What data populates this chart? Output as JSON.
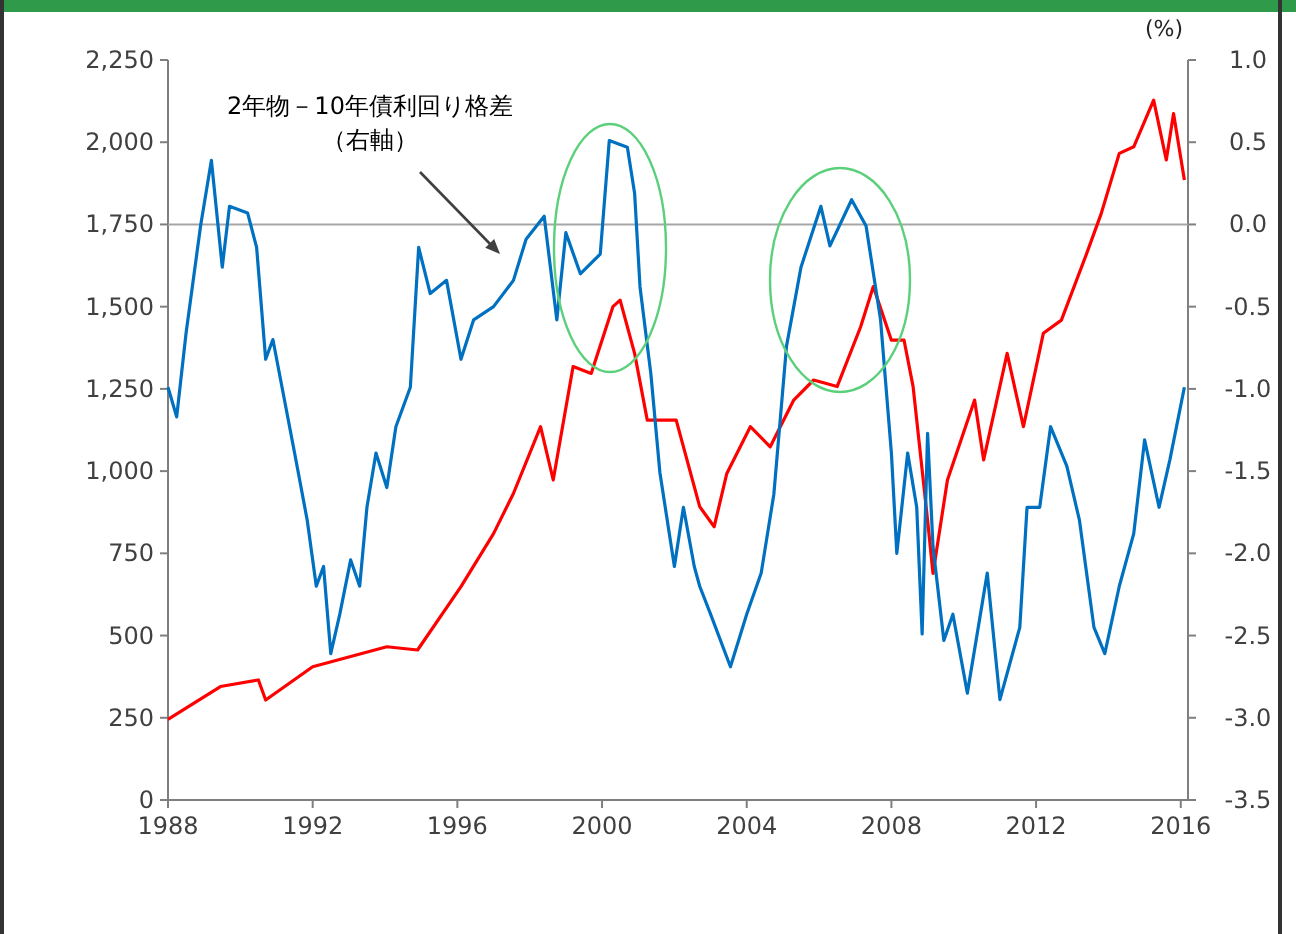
{
  "chart_data": {
    "type": "line",
    "y2label": "(%)",
    "xlim": [
      1988,
      2016.2
    ],
    "xticks": [
      1988,
      1992,
      1996,
      2000,
      2004,
      2008,
      2012,
      2016
    ],
    "ylim": [
      0,
      2250
    ],
    "yticks": [
      0,
      250,
      500,
      {
        "value": 750,
        "label": "750"
      },
      {
        "value": 1000,
        "label": "1,000"
      },
      {
        "value": 1250,
        "label": "1,250"
      },
      {
        "value": 1500,
        "label": "1,500"
      },
      {
        "value": 1750,
        "label": "1,750"
      },
      {
        "value": 2000,
        "label": "2,000"
      },
      {
        "value": 2250,
        "label": "2,250"
      }
    ],
    "y2lim": [
      -3.5,
      1.0
    ],
    "y2ticks": [
      {
        "value": -3.5,
        "label": "-3.5"
      },
      {
        "value": -3,
        "label": "-3.0"
      },
      {
        "value": -2.5,
        "label": "-2.5"
      },
      {
        "value": -2,
        "label": "-2.0"
      },
      {
        "value": -1.5,
        "label": "-1.5"
      },
      {
        "value": -1,
        "label": "-1.0"
      },
      {
        "value": -0.5,
        "label": "-0.5"
      },
      {
        "value": 0,
        "label": "0.0"
      },
      {
        "value": 0.5,
        "label": "0.5"
      },
      {
        "value": 1,
        "label": "1.0"
      }
    ],
    "ref_lines": [
      {
        "axis": "y2",
        "value": 0,
        "color": "#a6a6a6"
      }
    ],
    "annotations": [
      "2年物－10年債利回り格差",
      "（右軸）"
    ],
    "series": [
      {
        "color": "#ff0000",
        "axis": "y",
        "x": [
          1988.0,
          1989.45,
          1990.5,
          1990.7,
          1992.0,
          1994.05,
          1994.9,
          1996.1,
          1997.0,
          1997.55,
          1998.3,
          1998.65,
          1999.2,
          1999.7,
          2000.3,
          2000.5,
          2000.9,
          2001.25,
          2001.6,
          2002.05,
          2002.45,
          2002.7,
          2003.1,
          2003.45,
          2004.1,
          2004.65,
          2005.3,
          2005.85,
          2006.5,
          2007.15,
          2007.5,
          2008.0,
          2008.35,
          2008.6,
          2009.0,
          2009.15,
          2009.55,
          2010.3,
          2010.55,
          2011.2,
          2011.65,
          2012.2,
          2012.7,
          2013.4,
          2013.8,
          2014.3,
          2014.7,
          2015.25,
          2015.6,
          2015.8,
          2016.1
        ],
        "values": [
          245,
          345,
          365,
          304,
          405,
          466,
          456,
          649,
          810,
          932,
          1135,
          973,
          1318,
          1297,
          1500,
          1520,
          1358,
          1155,
          1155,
          1155,
          993,
          892,
          831,
          993,
          1135,
          1074,
          1216,
          1277,
          1257,
          1439,
          1561,
          1398,
          1398,
          1257,
          851,
          689,
          973,
          1216,
          1034,
          1358,
          1135,
          1419,
          1459,
          1662,
          1783,
          1966,
          1986,
          2128,
          1946,
          2087,
          1885
        ]
      },
      {
        "color": "#0070c0",
        "axis": "y2",
        "x": [
          1988.0,
          1988.24,
          1988.5,
          1988.9,
          1989.2,
          1989.5,
          1989.7,
          1990.2,
          1990.45,
          1990.7,
          1990.9,
          1991.5,
          1991.85,
          1992.1,
          1992.3,
          1992.5,
          1992.75,
          1993.05,
          1993.3,
          1993.5,
          1993.75,
          1994.05,
          1994.3,
          1994.7,
          1994.93,
          1995.25,
          1995.7,
          1996.1,
          1996.45,
          1997.0,
          1997.55,
          1997.9,
          1998.4,
          1998.75,
          1999.0,
          1999.4,
          1999.95,
          2000.2,
          2000.7,
          2000.9,
          2001.05,
          2001.35,
          2001.6,
          2002.0,
          2002.25,
          2002.55,
          2002.7,
          2003.0,
          2003.55,
          2004.0,
          2004.4,
          2004.75,
          2005.1,
          2005.5,
          2006.05,
          2006.3,
          2006.9,
          2007.3,
          2007.7,
          2008.0,
          2008.15,
          2008.45,
          2008.7,
          2008.85,
          2009.0,
          2009.15,
          2009.45,
          2009.7,
          2010.1,
          2010.65,
          2011.0,
          2011.55,
          2011.75,
          2012.1,
          2012.4,
          2012.85,
          2013.2,
          2013.6,
          2013.9,
          2014.3,
          2014.7,
          2015.0,
          2015.4,
          2015.7,
          2016.1
        ],
        "values": [
          -0.99,
          -1.17,
          -0.66,
          -0.01,
          0.39,
          -0.26,
          0.11,
          0.07,
          -0.14,
          -0.82,
          -0.7,
          -1.39,
          -1.8,
          -2.2,
          -2.08,
          -2.61,
          -2.37,
          -2.04,
          -2.2,
          -1.72,
          -1.39,
          -1.6,
          -1.23,
          -0.99,
          -0.14,
          -0.42,
          -0.34,
          -0.82,
          -0.58,
          -0.5,
          -0.34,
          -0.09,
          0.05,
          -0.58,
          -0.05,
          -0.3,
          -0.18,
          0.51,
          0.47,
          0.19,
          -0.38,
          -0.91,
          -1.51,
          -2.08,
          -1.72,
          -2.08,
          -2.2,
          -2.37,
          -2.69,
          -2.37,
          -2.12,
          -1.64,
          -0.74,
          -0.26,
          0.11,
          -0.13,
          0.15,
          -0.01,
          -0.58,
          -1.39,
          -2.0,
          -1.39,
          -1.72,
          -2.49,
          -1.27,
          -1.96,
          -2.53,
          -2.37,
          -2.85,
          -2.12,
          -2.89,
          -2.45,
          -1.72,
          -1.72,
          -1.23,
          -1.47,
          -1.8,
          -2.45,
          -2.61,
          -2.2,
          -1.88,
          -1.31,
          -1.72,
          -1.43,
          -0.99
        ]
      }
    ]
  }
}
